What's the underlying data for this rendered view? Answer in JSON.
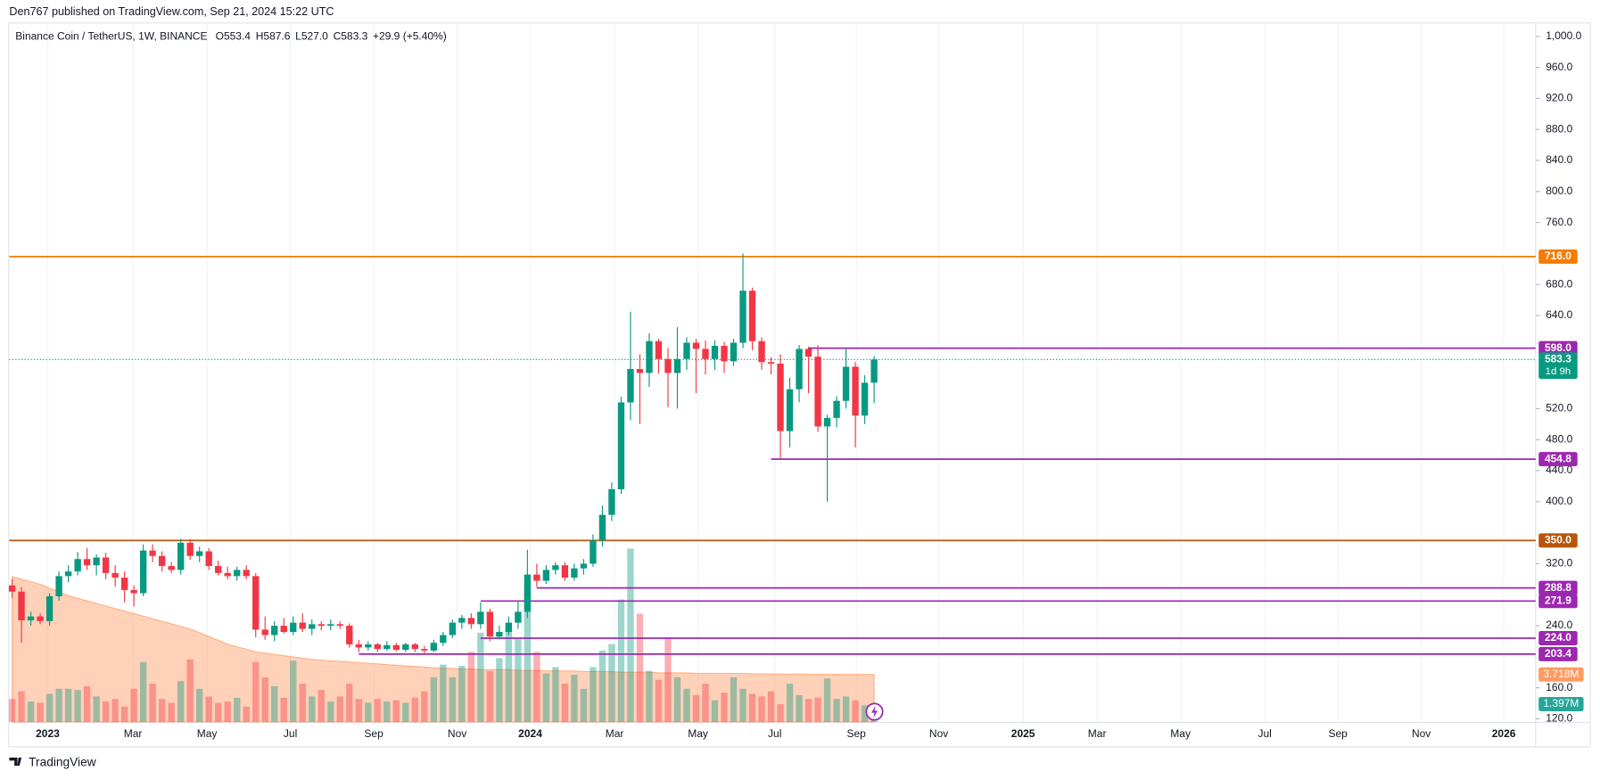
{
  "header": "Den767 published on TradingView.com, Sep 21, 2024 15:22 UTC",
  "footer": "TradingView",
  "chart_data": {
    "type": "candlestick",
    "legend": {
      "symbol": "Binance Coin / TetherUS, 1W, BINANCE",
      "open": "O553.4",
      "high": "H587.6",
      "low": "L527.0",
      "close": "C583.3",
      "change": "+29.9 (+5.40%)"
    },
    "up_color": "#089981",
    "down_color": "#f23645",
    "open": [
      292,
      284,
      247,
      252,
      246,
      278,
      304,
      310,
      326,
      318,
      328,
      308,
      302,
      286,
      282,
      337,
      330,
      317,
      312,
      347,
      330,
      336,
      317,
      308,
      304,
      312,
      304,
      235,
      228,
      240,
      232,
      244,
      236,
      242,
      240,
      242,
      240,
      216,
      212,
      216,
      210,
      215,
      209,
      216,
      210,
      208,
      218,
      228,
      244,
      250,
      242,
      258,
      226,
      232,
      244,
      258,
      306,
      298,
      312,
      318,
      302,
      314,
      320,
      350,
      383,
      416,
      528,
      571,
      566,
      607,
      584,
      566,
      584,
      605,
      597,
      584,
      601,
      581,
      605,
      672,
      607,
      580,
      578,
      491,
      545,
      597,
      587,
      497,
      508,
      530,
      574,
      511,
      553.4
    ],
    "high": [
      300,
      290,
      258,
      256,
      282,
      310,
      318,
      335,
      340,
      332,
      334,
      318,
      310,
      292,
      345,
      345,
      336,
      322,
      352,
      352,
      342,
      340,
      324,
      316,
      316,
      318,
      308,
      252,
      246,
      250,
      252,
      256,
      248,
      246,
      248,
      246,
      243,
      222,
      220,
      218,
      220,
      218,
      218,
      218,
      214,
      222,
      232,
      248,
      254,
      256,
      270,
      262,
      240,
      252,
      272,
      338,
      320,
      318,
      322,
      322,
      320,
      326,
      358,
      395,
      425,
      535,
      645,
      590,
      617,
      610,
      598,
      625,
      612,
      610,
      608,
      608,
      606,
      610,
      720,
      676,
      612,
      586,
      590,
      560,
      602,
      600,
      602,
      512,
      536,
      598,
      580,
      563,
      587.6
    ],
    "low": [
      276,
      218,
      240,
      242,
      240,
      272,
      296,
      305,
      312,
      305,
      300,
      290,
      270,
      265,
      278,
      322,
      310,
      308,
      306,
      325,
      322,
      312,
      305,
      300,
      298,
      300,
      225,
      222,
      220,
      230,
      228,
      232,
      228,
      234,
      234,
      236,
      212,
      206,
      208,
      206,
      208,
      207,
      206,
      206,
      204,
      206,
      214,
      224,
      236,
      236,
      236,
      220,
      222,
      228,
      236,
      250,
      290,
      294,
      306,
      298,
      298,
      306,
      316,
      342,
      375,
      410,
      505,
      500,
      548,
      565,
      522,
      520,
      570,
      540,
      564,
      570,
      566,
      575,
      598,
      595,
      570,
      564,
      455,
      470,
      528,
      540,
      490,
      400,
      496,
      520,
      470,
      500,
      527.0
    ],
    "close": [
      284,
      247,
      252,
      246,
      278,
      304,
      310,
      326,
      318,
      328,
      308,
      302,
      286,
      282,
      337,
      330,
      317,
      312,
      347,
      330,
      336,
      317,
      308,
      304,
      312,
      304,
      235,
      228,
      240,
      232,
      244,
      236,
      242,
      240,
      242,
      240,
      216,
      212,
      216,
      210,
      215,
      209,
      216,
      210,
      208,
      218,
      228,
      244,
      250,
      242,
      258,
      226,
      232,
      244,
      258,
      306,
      298,
      312,
      318,
      302,
      314,
      320,
      350,
      383,
      416,
      528,
      571,
      566,
      607,
      584,
      566,
      584,
      605,
      597,
      584,
      601,
      581,
      605,
      672,
      607,
      580,
      578,
      491,
      545,
      597,
      587,
      497,
      508,
      530,
      574,
      511,
      553.4,
      583.3
    ],
    "volume": {
      "values": [
        1.8,
        2.4,
        1.6,
        1.5,
        2.2,
        2.6,
        2.6,
        2.5,
        2.8,
        2.0,
        1.6,
        1.8,
        1.2,
        2.6,
        4.7,
        3.0,
        1.8,
        1.5,
        3.2,
        4.9,
        2.6,
        2.0,
        1.5,
        1.6,
        1.9,
        1.2,
        4.7,
        3.5,
        2.8,
        1.9,
        4.8,
        3.0,
        2.0,
        2.5,
        1.6,
        2.0,
        3.0,
        1.8,
        1.5,
        1.8,
        1.6,
        1.7,
        1.5,
        1.9,
        2.4,
        3.5,
        4.5,
        3.5,
        4.4,
        5.5,
        7.0,
        4.0,
        5.0,
        7.6,
        6.5,
        10.6,
        5.5,
        3.8,
        4.3,
        3.0,
        3.7,
        2.6,
        4.3,
        5.6,
        6.1,
        9.6,
        13.6,
        8.5,
        4.0,
        3.3,
        6.6,
        3.5,
        2.6,
        2.1,
        3.0,
        1.7,
        2.3,
        3.5,
        2.6,
        2.2,
        2.0,
        2.4,
        1.4,
        3.0,
        2.1,
        1.8,
        1.9,
        3.4,
        1.8,
        2.0,
        1.7,
        1.3,
        1.397
      ],
      "last_label": "1.397M",
      "color": "#26a69a"
    },
    "volume_ma": {
      "values": [
        11.4,
        11.2,
        11.0,
        10.8,
        10.5,
        10.2,
        9.9,
        9.7,
        9.5,
        9.3,
        9.1,
        8.9,
        8.7,
        8.5,
        8.3,
        8.1,
        7.9,
        7.7,
        7.5,
        7.3,
        7.0,
        6.7,
        6.4,
        6.1,
        5.9,
        5.7,
        5.5,
        5.4,
        5.3,
        5.2,
        5.1,
        5.0,
        4.9,
        4.85,
        4.8,
        4.75,
        4.7,
        4.65,
        4.6,
        4.55,
        4.5,
        4.45,
        4.4,
        4.35,
        4.3,
        4.25,
        4.2,
        4.2,
        4.15,
        4.15,
        4.1,
        4.1,
        4.1,
        4.1,
        4.05,
        4.05,
        4.05,
        4.0,
        4.0,
        4.0,
        4.0,
        3.95,
        3.95,
        3.95,
        3.95,
        3.9,
        3.9,
        3.9,
        3.9,
        3.85,
        3.85,
        3.85,
        3.85,
        3.8,
        3.8,
        3.8,
        3.8,
        3.8,
        3.8,
        3.78,
        3.78,
        3.76,
        3.76,
        3.75,
        3.75,
        3.74,
        3.74,
        3.73,
        3.73,
        3.72,
        3.72,
        3.72,
        3.718
      ],
      "last_label": "3.718M",
      "color": "#ff9a62"
    },
    "levels": [
      {
        "value": 716,
        "label": "716.0",
        "color": "#f57c00"
      },
      {
        "value": 598,
        "label": "598.0",
        "color": "#9c27b0",
        "x0": 85
      },
      {
        "value": 454.8,
        "label": "454.8",
        "color": "#9c27b0",
        "x0": 81
      },
      {
        "value": 350,
        "label": "350.0",
        "color": "#b8550b"
      },
      {
        "value": 288.8,
        "label": "288.8",
        "color": "#9c27b0",
        "x0": 56
      },
      {
        "value": 271.9,
        "label": "271.9",
        "color": "#9c27b0",
        "x0": 50
      },
      {
        "value": 224,
        "label": "224.0",
        "color": "#9c27b0",
        "x0": 50
      },
      {
        "value": 203.4,
        "label": "203.4",
        "color": "#9c27b0",
        "x0": 37
      }
    ],
    "last_price": {
      "value": 583.3,
      "label": "583.3",
      "countdown": "1d 9h",
      "color": "#089981"
    },
    "ylim": [
      116,
      1018
    ],
    "yticks": [
      {
        "value": 120,
        "label": "120.0"
      },
      {
        "value": 160,
        "label": "160.0"
      },
      {
        "value": 240,
        "label": "240.0"
      },
      {
        "value": 320,
        "label": "320.0"
      },
      {
        "value": 400,
        "label": "400.0"
      },
      {
        "value": 440,
        "label": "440.0"
      },
      {
        "value": 480,
        "label": "480.0"
      },
      {
        "value": 520,
        "label": "520.0"
      },
      {
        "value": 640,
        "label": "640.0"
      },
      {
        "value": 680,
        "label": "680.0"
      },
      {
        "value": 760,
        "label": "760.0"
      },
      {
        "value": 800,
        "label": "800.0"
      },
      {
        "value": 840,
        "label": "840.0"
      },
      {
        "value": 880,
        "label": "880.0"
      },
      {
        "value": 920,
        "label": "920.0"
      },
      {
        "value": 960,
        "label": "960.0"
      },
      {
        "value": 1000,
        "label": "1,000.0"
      }
    ],
    "xlim": [
      -0.3,
      162.6
    ],
    "xticks": [
      {
        "value": 3.8,
        "label": "2023"
      },
      {
        "value": 12.9,
        "label": "Mar"
      },
      {
        "value": 20.8,
        "label": "May"
      },
      {
        "value": 29.7,
        "label": "Jul"
      },
      {
        "value": 38.6,
        "label": "Sep"
      },
      {
        "value": 47.5,
        "label": "Nov"
      },
      {
        "value": 55.3,
        "label": "2024"
      },
      {
        "value": 64.3,
        "label": "Mar"
      },
      {
        "value": 73.2,
        "label": "May"
      },
      {
        "value": 81.4,
        "label": "Jul"
      },
      {
        "value": 90.1,
        "label": "Sep"
      },
      {
        "value": 98.9,
        "label": "Nov"
      },
      {
        "value": 107.9,
        "label": "2025"
      },
      {
        "value": 115.8,
        "label": "Mar"
      },
      {
        "value": 124.7,
        "label": "May"
      },
      {
        "value": 133.7,
        "label": "Jul"
      },
      {
        "value": 141.5,
        "label": "Sep"
      },
      {
        "value": 150.4,
        "label": "Nov"
      },
      {
        "value": 159.2,
        "label": "2026"
      }
    ],
    "grid": true
  }
}
